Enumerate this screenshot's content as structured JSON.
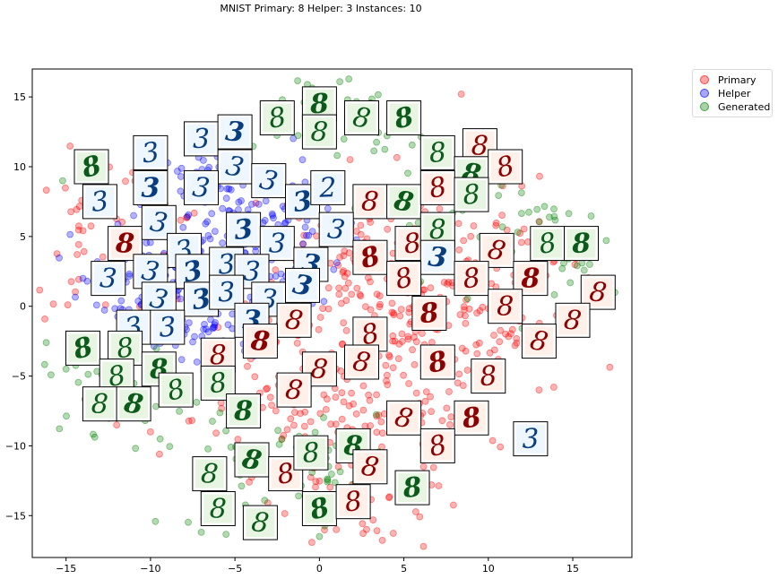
{
  "chart_data": {
    "type": "scatter",
    "title": "MNIST Primary: 8 Helper: 3 Instances: 10",
    "xlabel": "",
    "ylabel": "",
    "xlim": [
      -17,
      18.5
    ],
    "ylim": [
      -18,
      17
    ],
    "xticks": [
      -15,
      -10,
      -5,
      0,
      5,
      10,
      15
    ],
    "yticks": [
      -15,
      -10,
      -5,
      0,
      5,
      10,
      15
    ],
    "grid": false,
    "legend_position": "outside-top-right",
    "series": [
      {
        "name": "Primary",
        "color": "#ff0000",
        "cluster_centers": [
          [
            4,
            -1
          ],
          [
            8,
            0
          ],
          [
            2,
            4
          ],
          [
            5,
            -5
          ],
          [
            10,
            3
          ],
          [
            -1,
            -8
          ],
          [
            3,
            -12
          ],
          [
            -12,
            5
          ]
        ],
        "points": [
          [
            8.4,
            15.2
          ],
          [
            -14.9,
            0.1
          ],
          [
            -10.0,
            -9.0
          ],
          [
            -12.0,
            -8.5
          ],
          [
            13.0,
            -6.0
          ],
          [
            -6.0,
            -1.5
          ],
          [
            -3.0,
            -1.0
          ],
          [
            1.0,
            -16.0
          ],
          [
            2.0,
            -7.0
          ],
          [
            9.5,
            -6.0
          ]
        ]
      },
      {
        "name": "Helper",
        "color": "#0000ff",
        "cluster_centers": [
          [
            -6,
            8
          ],
          [
            -9,
            3
          ],
          [
            -3,
            4
          ],
          [
            -7,
            -1
          ]
        ],
        "points": [
          [
            -11.0,
            6.5
          ],
          [
            -12.0,
            2.0
          ],
          [
            -8.0,
            -2.0
          ],
          [
            -14.0,
            2.0
          ],
          [
            0.5,
            7.0
          ],
          [
            -1.0,
            10.5
          ]
        ]
      },
      {
        "name": "Generated",
        "color": "#008000",
        "cluster_centers": [
          [
            1,
            14
          ],
          [
            -12,
            -5
          ],
          [
            0,
            -11
          ],
          [
            7,
            8
          ],
          [
            15,
            4
          ],
          [
            -5,
            -12
          ]
        ],
        "points": [
          [
            -15.0,
            -4.5
          ],
          [
            -15.2,
            9.0
          ],
          [
            -4.0,
            -16.0
          ],
          [
            0.0,
            -16.5
          ],
          [
            16.0,
            3.0
          ],
          [
            5.0,
            -12.0
          ]
        ]
      }
    ],
    "thumbnails": [
      {
        "x": -13.5,
        "y": 10.0,
        "digit": "8",
        "series": "Generated"
      },
      {
        "x": -10.0,
        "y": 11.0,
        "digit": "3",
        "series": "Helper"
      },
      {
        "x": -7.0,
        "y": 12.0,
        "digit": "3",
        "series": "Helper"
      },
      {
        "x": -5.0,
        "y": 12.5,
        "digit": "3",
        "series": "Helper"
      },
      {
        "x": -5.0,
        "y": 10.0,
        "digit": "3",
        "series": "Helper"
      },
      {
        "x": -2.5,
        "y": 13.5,
        "digit": "8",
        "series": "Generated"
      },
      {
        "x": 0.0,
        "y": 14.5,
        "digit": "8",
        "series": "Generated"
      },
      {
        "x": 0.0,
        "y": 12.5,
        "digit": "8",
        "series": "Generated"
      },
      {
        "x": 2.5,
        "y": 13.5,
        "digit": "8",
        "series": "Generated"
      },
      {
        "x": 5.0,
        "y": 13.5,
        "digit": "8",
        "series": "Generated"
      },
      {
        "x": 7.0,
        "y": 11.0,
        "digit": "8",
        "series": "Generated"
      },
      {
        "x": 9.5,
        "y": 11.5,
        "digit": "8",
        "series": "Primary"
      },
      {
        "x": 9.0,
        "y": 9.5,
        "digit": "8",
        "series": "Generated"
      },
      {
        "x": 11.0,
        "y": 10.0,
        "digit": "8",
        "series": "Primary"
      },
      {
        "x": -13.0,
        "y": 7.5,
        "digit": "3",
        "series": "Helper"
      },
      {
        "x": -10.0,
        "y": 8.5,
        "digit": "3",
        "series": "Helper"
      },
      {
        "x": -7.0,
        "y": 8.5,
        "digit": "3",
        "series": "Helper"
      },
      {
        "x": -3.0,
        "y": 9.0,
        "digit": "3",
        "series": "Helper"
      },
      {
        "x": -1.0,
        "y": 7.5,
        "digit": "3",
        "series": "Helper"
      },
      {
        "x": 0.5,
        "y": 8.5,
        "digit": "2",
        "series": "Helper"
      },
      {
        "x": 3.0,
        "y": 7.5,
        "digit": "8",
        "series": "Primary"
      },
      {
        "x": 5.0,
        "y": 7.5,
        "digit": "8",
        "series": "Generated"
      },
      {
        "x": 7.0,
        "y": 8.5,
        "digit": "8",
        "series": "Primary"
      },
      {
        "x": 9.0,
        "y": 8.0,
        "digit": "8",
        "series": "Generated"
      },
      {
        "x": -11.5,
        "y": 4.5,
        "digit": "8",
        "series": "Primary"
      },
      {
        "x": -9.5,
        "y": 6.0,
        "digit": "3",
        "series": "Helper"
      },
      {
        "x": -8.0,
        "y": 4.0,
        "digit": "3",
        "series": "Helper"
      },
      {
        "x": -4.5,
        "y": 5.5,
        "digit": "3",
        "series": "Helper"
      },
      {
        "x": -2.5,
        "y": 4.5,
        "digit": "3",
        "series": "Helper"
      },
      {
        "x": 1.0,
        "y": 5.5,
        "digit": "3",
        "series": "Helper"
      },
      {
        "x": 3.0,
        "y": 3.5,
        "digit": "8",
        "series": "Primary"
      },
      {
        "x": 5.5,
        "y": 4.5,
        "digit": "8",
        "series": "Primary"
      },
      {
        "x": 7.0,
        "y": 5.5,
        "digit": "8",
        "series": "Generated"
      },
      {
        "x": 7.0,
        "y": 3.5,
        "digit": "3",
        "series": "Helper"
      },
      {
        "x": 10.5,
        "y": 4.0,
        "digit": "8",
        "series": "Primary"
      },
      {
        "x": 13.5,
        "y": 4.5,
        "digit": "8",
        "series": "Generated"
      },
      {
        "x": 15.5,
        "y": 4.5,
        "digit": "8",
        "series": "Generated"
      },
      {
        "x": -12.5,
        "y": 2.0,
        "digit": "3",
        "series": "Helper"
      },
      {
        "x": -10.0,
        "y": 2.5,
        "digit": "3",
        "series": "Helper"
      },
      {
        "x": -7.5,
        "y": 2.5,
        "digit": "3",
        "series": "Helper"
      },
      {
        "x": -5.5,
        "y": 3.0,
        "digit": "3",
        "series": "Helper"
      },
      {
        "x": -4.0,
        "y": 2.5,
        "digit": "3",
        "series": "Helper"
      },
      {
        "x": -0.5,
        "y": 3.0,
        "digit": "3",
        "series": "Helper"
      },
      {
        "x": 5.0,
        "y": 2.0,
        "digit": "8",
        "series": "Primary"
      },
      {
        "x": 9.0,
        "y": 2.0,
        "digit": "8",
        "series": "Primary"
      },
      {
        "x": 12.5,
        "y": 2.0,
        "digit": "8",
        "series": "Primary"
      },
      {
        "x": 16.5,
        "y": 1.0,
        "digit": "8",
        "series": "Primary"
      },
      {
        "x": -9.5,
        "y": 0.5,
        "digit": "3",
        "series": "Helper"
      },
      {
        "x": -7.0,
        "y": 0.5,
        "digit": "3",
        "series": "Helper"
      },
      {
        "x": -5.5,
        "y": 1.0,
        "digit": "3",
        "series": "Helper"
      },
      {
        "x": -3.0,
        "y": 0.5,
        "digit": "3",
        "series": "Helper"
      },
      {
        "x": -1.0,
        "y": 1.5,
        "digit": "3",
        "series": "Helper"
      },
      {
        "x": -11.0,
        "y": -1.5,
        "digit": "3",
        "series": "Helper"
      },
      {
        "x": -9.0,
        "y": -1.5,
        "digit": "3",
        "series": "Helper"
      },
      {
        "x": -4.0,
        "y": -1.0,
        "digit": "3",
        "series": "Helper"
      },
      {
        "x": -1.5,
        "y": -1.0,
        "digit": "8",
        "series": "Primary"
      },
      {
        "x": 3.0,
        "y": -2.0,
        "digit": "8",
        "series": "Primary"
      },
      {
        "x": 6.5,
        "y": -0.5,
        "digit": "8",
        "series": "Primary"
      },
      {
        "x": 11.0,
        "y": 0.0,
        "digit": "8",
        "series": "Primary"
      },
      {
        "x": 15.0,
        "y": -1.0,
        "digit": "8",
        "series": "Primary"
      },
      {
        "x": -14.0,
        "y": -3.0,
        "digit": "8",
        "series": "Generated"
      },
      {
        "x": -11.5,
        "y": -3.0,
        "digit": "8",
        "series": "Generated"
      },
      {
        "x": -6.0,
        "y": -3.5,
        "digit": "8",
        "series": "Primary"
      },
      {
        "x": -3.5,
        "y": -2.5,
        "digit": "8",
        "series": "Primary"
      },
      {
        "x": 13.0,
        "y": -2.5,
        "digit": "8",
        "series": "Primary"
      },
      {
        "x": -12.0,
        "y": -5.0,
        "digit": "8",
        "series": "Generated"
      },
      {
        "x": -9.5,
        "y": -4.5,
        "digit": "8",
        "series": "Generated"
      },
      {
        "x": -0.0,
        "y": -4.5,
        "digit": "8",
        "series": "Primary"
      },
      {
        "x": 2.5,
        "y": -4.0,
        "digit": "8",
        "series": "Primary"
      },
      {
        "x": 7.0,
        "y": -4.0,
        "digit": "8",
        "series": "Primary"
      },
      {
        "x": 10.0,
        "y": -5.0,
        "digit": "8",
        "series": "Primary"
      },
      {
        "x": -13.0,
        "y": -7.0,
        "digit": "8",
        "series": "Generated"
      },
      {
        "x": -11.0,
        "y": -7.0,
        "digit": "8",
        "series": "Generated"
      },
      {
        "x": -8.5,
        "y": -6.0,
        "digit": "8",
        "series": "Generated"
      },
      {
        "x": -6.0,
        "y": -5.5,
        "digit": "8",
        "series": "Generated"
      },
      {
        "x": -4.5,
        "y": -7.5,
        "digit": "8",
        "series": "Generated"
      },
      {
        "x": -1.5,
        "y": -6.0,
        "digit": "8",
        "series": "Primary"
      },
      {
        "x": 5.0,
        "y": -8.0,
        "digit": "8",
        "series": "Primary"
      },
      {
        "x": 9.0,
        "y": -8.0,
        "digit": "8",
        "series": "Primary"
      },
      {
        "x": 12.5,
        "y": -9.5,
        "digit": "3",
        "series": "Helper"
      },
      {
        "x": -6.5,
        "y": -12.0,
        "digit": "8",
        "series": "Generated"
      },
      {
        "x": -4.0,
        "y": -11.0,
        "digit": "8",
        "series": "Generated"
      },
      {
        "x": -2.0,
        "y": -12.0,
        "digit": "8",
        "series": "Primary"
      },
      {
        "x": -0.5,
        "y": -10.5,
        "digit": "8",
        "series": "Generated"
      },
      {
        "x": 2.0,
        "y": -10.0,
        "digit": "8",
        "series": "Generated"
      },
      {
        "x": 3.0,
        "y": -11.5,
        "digit": "8",
        "series": "Primary"
      },
      {
        "x": 7.0,
        "y": -10.0,
        "digit": "8",
        "series": "Primary"
      },
      {
        "x": 5.5,
        "y": -13.0,
        "digit": "8",
        "series": "Generated"
      },
      {
        "x": -6.0,
        "y": -14.5,
        "digit": "8",
        "series": "Generated"
      },
      {
        "x": -3.5,
        "y": -15.5,
        "digit": "8",
        "series": "Generated"
      },
      {
        "x": -0.0,
        "y": -14.5,
        "digit": "8",
        "series": "Generated"
      },
      {
        "x": 2.0,
        "y": -14.0,
        "digit": "8",
        "series": "Primary"
      }
    ]
  },
  "legend": {
    "items": [
      {
        "label": "Primary",
        "color": "#ff0000"
      },
      {
        "label": "Helper",
        "color": "#0000ff"
      },
      {
        "label": "Generated",
        "color": "#008000"
      }
    ]
  },
  "thumb_styles": {
    "Primary": {
      "bg": "#fff0ea",
      "ink": "#8b0000"
    },
    "Helper": {
      "bg": "#eef6ff",
      "ink": "#083d80"
    },
    "Generated": {
      "bg": "#e8f5e3",
      "ink": "#0b5a1a"
    }
  }
}
